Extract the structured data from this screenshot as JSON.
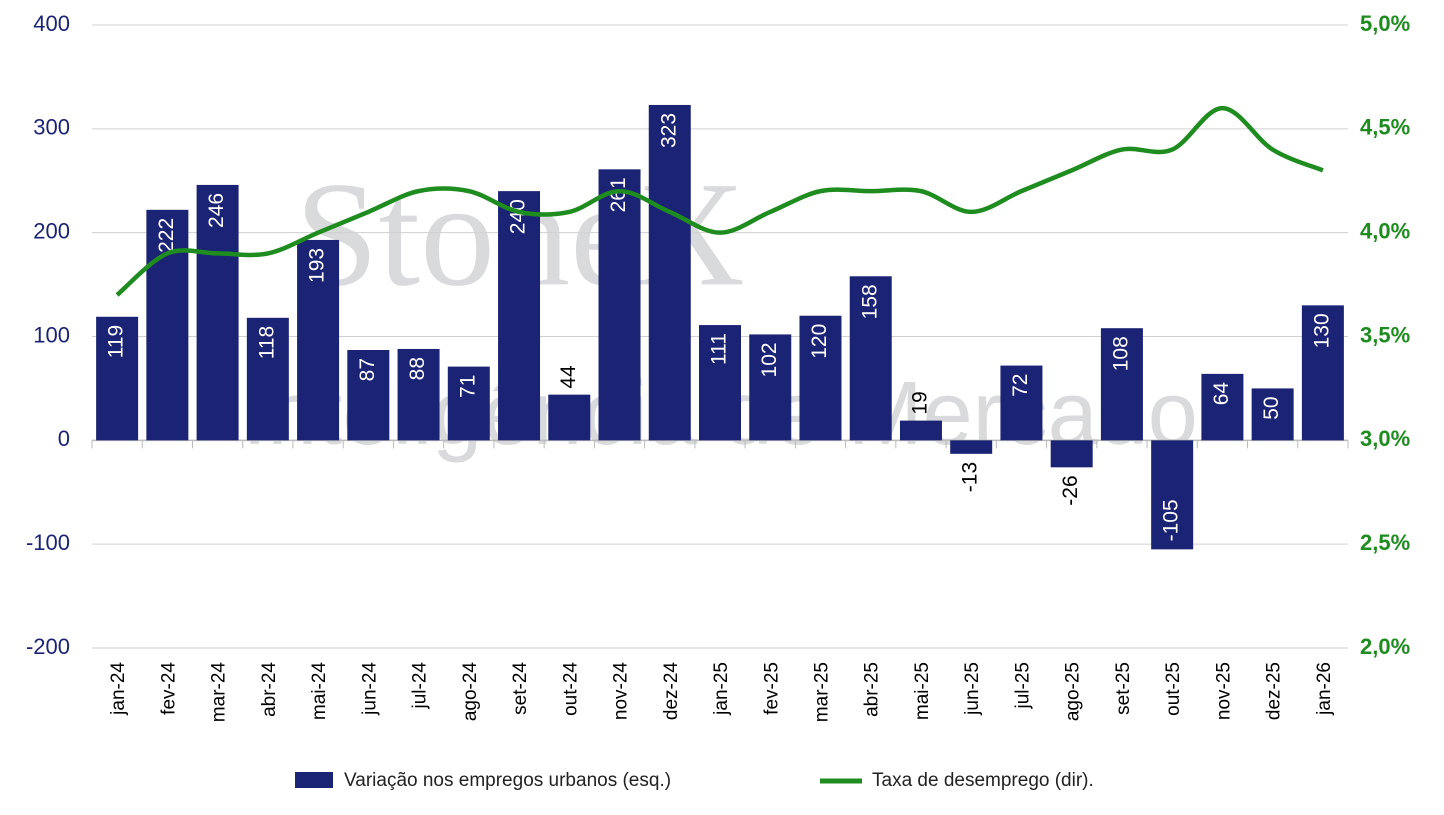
{
  "chart_data": {
    "type": "bar-line",
    "watermark": [
      "StoneX",
      "Inteligência de Mercado"
    ],
    "categories": [
      "jan-24",
      "fev-24",
      "mar-24",
      "abr-24",
      "mai-24",
      "jun-24",
      "jul-24",
      "ago-24",
      "set-24",
      "out-24",
      "nov-24",
      "dez-24",
      "jan-25",
      "fev-25",
      "mar-25",
      "abr-25",
      "mai-25",
      "jun-25",
      "jul-25",
      "ago-25",
      "set-25",
      "out-25",
      "nov-25",
      "dez-25",
      "jan-26"
    ],
    "series": [
      {
        "name": "Variação nos empregos urbanos (esq.)",
        "type": "bar",
        "color": "#1b2474",
        "values": [
          119,
          222,
          246,
          118,
          193,
          87,
          88,
          71,
          240,
          44,
          261,
          323,
          111,
          102,
          120,
          158,
          19,
          -13,
          72,
          -26,
          108,
          -105,
          64,
          50,
          130
        ]
      },
      {
        "name": "Taxa de desemprego (dir).",
        "type": "line",
        "axis": "y2",
        "color": "#1e8c1e",
        "values": [
          3.7,
          3.9,
          3.9,
          3.9,
          4.0,
          4.1,
          4.2,
          4.2,
          4.1,
          4.1,
          4.2,
          4.1,
          4.0,
          4.1,
          4.2,
          4.2,
          4.2,
          4.1,
          4.2,
          4.3,
          4.4,
          4.4,
          4.6,
          4.4,
          4.3
        ]
      }
    ],
    "ylim": [
      -200,
      400
    ],
    "yticks": [
      -200,
      -100,
      0,
      100,
      200,
      300,
      400
    ],
    "y2lim": [
      2.0,
      5.0
    ],
    "y2ticks": [
      {
        "value": 2.0,
        "label": "2,0%"
      },
      {
        "value": 2.5,
        "label": "2,5%"
      },
      {
        "value": 3.0,
        "label": "3,0%"
      },
      {
        "value": 3.5,
        "label": "3,5%"
      },
      {
        "value": 4.0,
        "label": "4,0%"
      },
      {
        "value": 4.5,
        "label": "4,5%"
      },
      {
        "value": 5.0,
        "label": "5,0%"
      }
    ],
    "grid": true,
    "legend": "bottom"
  }
}
